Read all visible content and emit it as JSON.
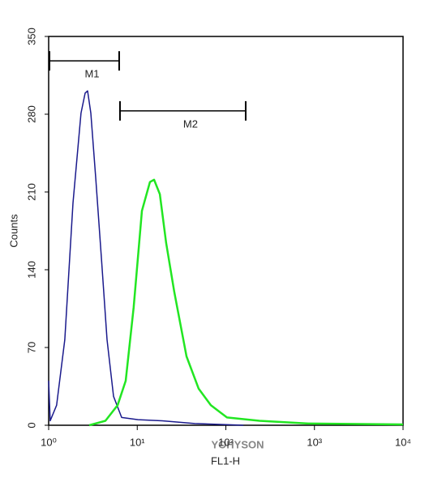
{
  "chart_data": {
    "type": "histogram-overlay",
    "y_label": "Counts",
    "x_label": "FL1-H",
    "xscale": "log",
    "xlim": [
      1,
      10000
    ],
    "xticks": [
      {
        "value": 1,
        "label": "10⁰"
      },
      {
        "value": 10,
        "label": "10¹"
      },
      {
        "value": 100,
        "label": "10²"
      },
      {
        "value": 1000,
        "label": "10³"
      },
      {
        "value": 10000,
        "label": "10⁴"
      }
    ],
    "ylim": [
      0,
      350
    ],
    "yticks": [
      0,
      70,
      140,
      210,
      280,
      350
    ],
    "series": [
      {
        "color": "#1a1a8c",
        "x": [
          1.0,
          1.04,
          1.23,
          1.52,
          1.88,
          2.32,
          2.58,
          2.75,
          2.99,
          3.4,
          3.94,
          4.56,
          5.4,
          6.67,
          10.2,
          19.1,
          44.5,
          158
        ],
        "values": [
          40,
          4,
          18,
          77,
          200,
          281,
          299,
          301,
          281,
          222,
          150,
          77,
          26,
          7,
          5,
          4,
          1.5,
          0
        ]
      },
      {
        "color": "#22e622",
        "x": [
          2.87,
          4.37,
          6.0,
          7.4,
          9.1,
          11.3,
          13.9,
          15.5,
          18.0,
          21.2,
          26.2,
          36.0,
          49.3,
          67.7,
          103,
          240,
          851,
          10000
        ],
        "values": [
          0,
          4,
          18,
          40,
          106,
          193,
          219,
          221,
          208,
          164,
          120,
          62,
          33,
          18,
          7,
          4,
          1.5,
          0.7
        ]
      }
    ],
    "markers": [
      {
        "label": "M1",
        "x": [
          1,
          6.25
        ],
        "y": 328
      },
      {
        "label": "M2",
        "x": [
          6.25,
          167.5
        ],
        "y": 283
      }
    ],
    "watermark": "YOHYSON"
  }
}
